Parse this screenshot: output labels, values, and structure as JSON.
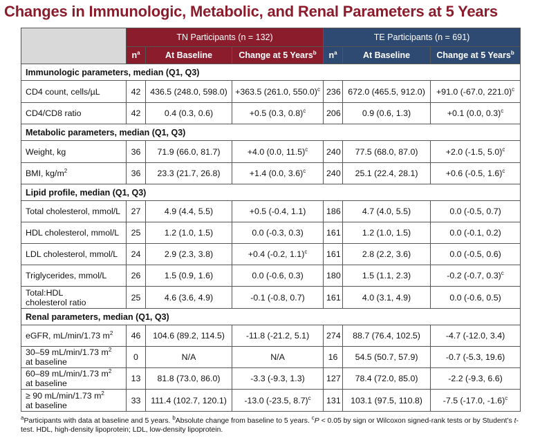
{
  "title": "Changes in Immunologic, Metabolic, and Renal Parameters at 5 Years",
  "header": {
    "tn_group": "TN Participants (n = 132)",
    "te_group": "TE Participants (n = 691)",
    "n_label": "n",
    "n_sup": "a",
    "baseline_label": "At Baseline",
    "change_label": "Change at 5 Years",
    "change_sup": "b"
  },
  "sections": [
    {
      "title": "Immunologic parameters, median (Q1, Q3)",
      "rows": [
        {
          "label": "CD4 count, cells/µL",
          "tn_n": "42",
          "tn_base": "436.5 (248.0, 598.0)",
          "tn_change": "+363.5 (261.0, 550.0)",
          "tn_sig": "c",
          "te_n": "236",
          "te_base": "672.0 (465.5, 912.0)",
          "te_change": "+91.0 (-67.0, 221.0)",
          "te_sig": "c"
        },
        {
          "label": "CD4/CD8 ratio",
          "tn_n": "42",
          "tn_base": "0.4 (0.3, 0.6)",
          "tn_change": "+0.5 (0.3, 0.8)",
          "tn_sig": "c",
          "te_n": "206",
          "te_base": "0.9 (0.6, 1.3)",
          "te_change": "+0.1 (0.0, 0.3)",
          "te_sig": "c"
        }
      ]
    },
    {
      "title": "Metabolic parameters, median (Q1, Q3)",
      "rows": [
        {
          "label": "Weight, kg",
          "tn_n": "36",
          "tn_base": "71.9 (66.0, 81.7)",
          "tn_change": "+4.0 (0.0, 11.5)",
          "tn_sig": "c",
          "te_n": "240",
          "te_base": "77.5 (68.0, 87.0)",
          "te_change": "+2.0 (-1.5, 5.0)",
          "te_sig": "c"
        },
        {
          "label": "BMI, kg/m",
          "label_sup": "2",
          "tn_n": "36",
          "tn_base": "23.3 (21.7, 26.8)",
          "tn_change": "+1.4 (0.0, 3.6)",
          "tn_sig": "c",
          "te_n": "240",
          "te_base": "25.1 (22.4, 28.1)",
          "te_change": "+0.6 (-0.5, 1.6)",
          "te_sig": "c"
        }
      ]
    },
    {
      "title": "Lipid profile, median (Q1, Q3)",
      "rows": [
        {
          "label": "Total cholesterol, mmol/L",
          "tn_n": "27",
          "tn_base": "4.9 (4.4, 5.5)",
          "tn_change": "+0.5 (-0.4, 1.1)",
          "te_n": "186",
          "te_base": "4.7 (4.0, 5.5)",
          "te_change": "0.0 (-0.5, 0.7)"
        },
        {
          "label": "HDL cholesterol, mmol/L",
          "tn_n": "25",
          "tn_base": "1.2 (1.0, 1.5)",
          "tn_change": "0.0 (-0.3, 0.3)",
          "te_n": "161",
          "te_base": "1.2 (1.0, 1.5)",
          "te_change": "0.0 (-0.1, 0.2)"
        },
        {
          "label": "LDL cholesterol, mmol/L",
          "tn_n": "24",
          "tn_base": "2.9 (2.3, 3.8)",
          "tn_change": "+0.4 (-0.2, 1.1)",
          "tn_sig": "c",
          "te_n": "161",
          "te_base": "2.8 (2.2, 3.6)",
          "te_change": "0.0 (-0.5, 0.6)"
        },
        {
          "label": "Triglycerides, mmol/L",
          "tn_n": "26",
          "tn_base": "1.5 (0.9, 1.6)",
          "tn_change": "0.0 (-0.6, 0.3)",
          "te_n": "180",
          "te_base": "1.5 (1.1, 2.3)",
          "te_change": "-0.2 (-0.7, 0.3)",
          "te_sig": "c"
        },
        {
          "label": "Total:HDL",
          "label2": "cholesterol ratio",
          "tn_n": "25",
          "tn_base": "4.6 (3.6, 4.9)",
          "tn_change": "-0.1 (-0.8, 0.7)",
          "te_n": "161",
          "te_base": "4.0 (3.1, 4.9)",
          "te_change": "0.0 (-0.6, 0.5)"
        }
      ]
    },
    {
      "title": "Renal parameters, median (Q1, Q3)",
      "rows": [
        {
          "label": "eGFR, mL/min/1.73 m",
          "label_sup": "2",
          "tn_n": "46",
          "tn_base": "104.6 (89.2, 114.5)",
          "tn_change": "-11.8 (-21.2, 5.1)",
          "te_n": "274",
          "te_base": "88.7 (76.4, 102.5)",
          "te_change": "-4.7 (-12.0, 3.4)"
        },
        {
          "label": "30–59 mL/min/1.73 m",
          "label_sup": "2",
          "label2": "at baseline",
          "tn_n": "0",
          "tn_base": "N/A",
          "tn_change": "N/A",
          "te_n": "16",
          "te_base": "54.5 (50.7, 57.9)",
          "te_change": "-0.7 (-5.3, 19.6)"
        },
        {
          "label": "60–89 mL/min/1.73 m",
          "label_sup": "2",
          "label2": "at baseline",
          "tn_n": "13",
          "tn_base": "81.8 (73.0, 86.0)",
          "tn_change": "-3.3 (-9.3, 1.3)",
          "te_n": "127",
          "te_base": "78.4 (72.0, 85.0)",
          "te_change": "-2.2 (-9.3, 6.6)"
        },
        {
          "label": "≥ 90 mL/min/1.73 m",
          "label_sup": "2",
          "label2": "at baseline",
          "tn_n": "33",
          "tn_base": "111.4 (102.7, 120.1)",
          "tn_change": "-13.0 (-23.5, 8.7)",
          "tn_sig": "c",
          "te_n": "131",
          "te_base": "103.1 (97.5, 110.8)",
          "te_change": "-7.5 (-17.0, -1.6)",
          "te_sig": "c"
        }
      ]
    }
  ],
  "footnote": {
    "a_mark": "a",
    "a_text": "Participants with data at baseline and 5 years. ",
    "b_mark": "b",
    "b_text": "Absolute change from baseline to 5 years. ",
    "c_mark": "c",
    "c_p": "P",
    "c_text": " < 0.05 by sign or Wilcoxon signed-rank tests or by Student’s ",
    "c_t": "t",
    "c_text2": "-test. HDL, high-density lipoprotein; LDL, low-density lipoprotein."
  }
}
